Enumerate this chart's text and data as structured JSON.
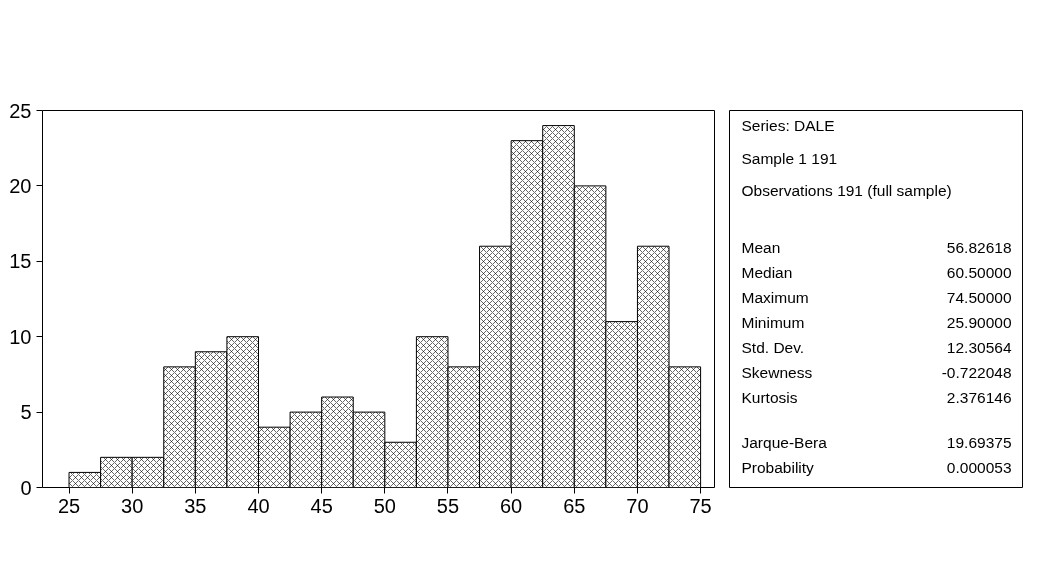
{
  "chart_data": [
    {
      "type": "histogram",
      "bins": [
        25,
        27.5,
        30,
        32.5,
        35,
        37.5,
        40,
        42.5,
        45,
        47.5,
        50,
        52.5,
        55,
        57.5,
        60,
        62.5,
        65,
        67.5,
        70,
        72.5,
        75
      ],
      "values": [
        1,
        2,
        2,
        8,
        9,
        10,
        4,
        5,
        6,
        5,
        3,
        10,
        8,
        16,
        23,
        24,
        20,
        11,
        16,
        8
      ],
      "color": "#000000",
      "xlim": [
        22.9,
        76.1
      ],
      "xticks": [
        25,
        30,
        35,
        40,
        45,
        50,
        55,
        60,
        65,
        70,
        75
      ],
      "ylim": [
        0,
        25
      ],
      "yticks": [
        0,
        5,
        10,
        15,
        20,
        25
      ],
      "grid": false
    },
    {
      "type": "other",
      "annotations": [
        "Series: DALE",
        "Sample 1 191",
        "Observations 191 (full sample)"
      ],
      "categories": [
        "Mean",
        "Median",
        "Maximum",
        "Minimum",
        "Std. Dev.",
        "Skewness",
        "Kurtosis",
        "Jarque-Bera",
        "Probability"
      ],
      "value_labels": [
        "56.82618",
        "60.50000",
        "74.50000",
        "25.90000",
        "12.30564",
        "-0.722048",
        "2.376146",
        "19.69375",
        "0.000053"
      ]
    }
  ]
}
